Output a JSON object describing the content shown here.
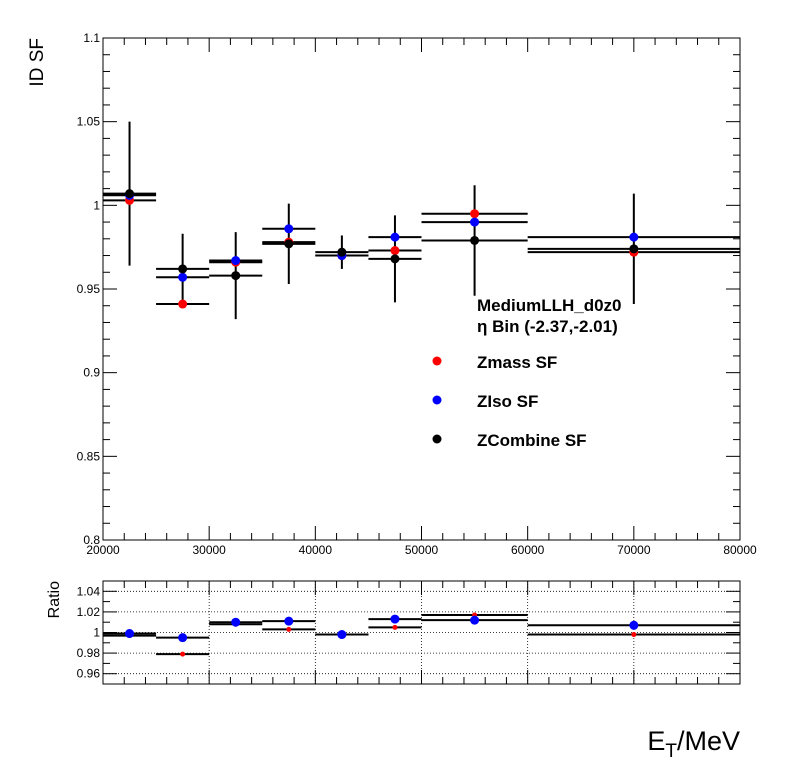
{
  "chart_data": [
    {
      "type": "scatter",
      "ylabel": "ID SF",
      "xlim": [
        20000,
        80000
      ],
      "ylim": [
        0.8,
        1.1
      ],
      "x_ticks": [
        "20000",
        "30000",
        "40000",
        "50000",
        "60000",
        "70000",
        "80000"
      ],
      "y_ticks": [
        "0.8",
        "0.85",
        "0.9",
        "0.95",
        "1",
        "1.05",
        "1.1"
      ],
      "grid": false,
      "legend_position": "center-right",
      "annotation_lines": [
        "MediumLLH_d0z0",
        "η Bin (-2.37,-2.01)"
      ],
      "series": [
        {
          "name": "Zmass SF",
          "color": "#ff0000",
          "points": [
            {
              "x": 22500,
              "xerr": 2500,
              "y": 1.003,
              "yerr": 0.0
            },
            {
              "x": 27500,
              "xerr": 2500,
              "y": 0.941,
              "yerr": 0.0
            },
            {
              "x": 32500,
              "xerr": 2500,
              "y": 0.966,
              "yerr": 0.0
            },
            {
              "x": 37500,
              "xerr": 2500,
              "y": 0.978,
              "yerr": 0.0
            },
            {
              "x": 42500,
              "xerr": 2500,
              "y": 0.97,
              "yerr": 0.0
            },
            {
              "x": 47500,
              "xerr": 2500,
              "y": 0.973,
              "yerr": 0.0
            },
            {
              "x": 55000,
              "xerr": 5000,
              "y": 0.995,
              "yerr": 0.0
            },
            {
              "x": 70000,
              "xerr": 10000,
              "y": 0.972,
              "yerr": 0.0
            }
          ]
        },
        {
          "name": "ZIso SF",
          "color": "#0000ff",
          "points": [
            {
              "x": 22500,
              "xerr": 2500,
              "y": 1.006,
              "yerr": 0.0
            },
            {
              "x": 27500,
              "xerr": 2500,
              "y": 0.957,
              "yerr": 0.0
            },
            {
              "x": 32500,
              "xerr": 2500,
              "y": 0.967,
              "yerr": 0.0
            },
            {
              "x": 37500,
              "xerr": 2500,
              "y": 0.986,
              "yerr": 0.0
            },
            {
              "x": 42500,
              "xerr": 2500,
              "y": 0.97,
              "yerr": 0.0
            },
            {
              "x": 47500,
              "xerr": 2500,
              "y": 0.981,
              "yerr": 0.0
            },
            {
              "x": 55000,
              "xerr": 5000,
              "y": 0.99,
              "yerr": 0.0
            },
            {
              "x": 70000,
              "xerr": 10000,
              "y": 0.981,
              "yerr": 0.0
            }
          ]
        },
        {
          "name": "ZCombine SF",
          "color": "#000000",
          "points": [
            {
              "x": 22500,
              "xerr": 2500,
              "y": 1.007,
              "yerr": 0.043
            },
            {
              "x": 27500,
              "xerr": 2500,
              "y": 0.962,
              "yerr": 0.021
            },
            {
              "x": 32500,
              "xerr": 2500,
              "y": 0.958,
              "yerr": 0.026
            },
            {
              "x": 37500,
              "xerr": 2500,
              "y": 0.977,
              "yerr": 0.024
            },
            {
              "x": 42500,
              "xerr": 2500,
              "y": 0.972,
              "yerr": 0.01
            },
            {
              "x": 47500,
              "xerr": 2500,
              "y": 0.968,
              "yerr": 0.026
            },
            {
              "x": 55000,
              "xerr": 5000,
              "y": 0.979,
              "yerr": 0.033
            },
            {
              "x": 70000,
              "xerr": 10000,
              "y": 0.974,
              "yerr": 0.033
            }
          ]
        }
      ]
    },
    {
      "type": "scatter",
      "xlabel_main": "E",
      "xlabel_sub": "T",
      "xlabel_rest": "/MeV",
      "ylabel": "Ratio",
      "xlim": [
        20000,
        80000
      ],
      "ylim": [
        0.95,
        1.05
      ],
      "x_ticks": [
        "20000",
        "30000",
        "40000",
        "50000",
        "60000",
        "70000",
        "80000"
      ],
      "y_ticks": [
        "0.96",
        "0.98",
        "1",
        "1.02",
        "1.04"
      ],
      "grid": true,
      "series": [
        {
          "name": "Zmass ratio",
          "color": "#ff0000",
          "points": [
            {
              "x": 22500,
              "xerr": 2500,
              "y": 0.997
            },
            {
              "x": 27500,
              "xerr": 2500,
              "y": 0.979
            },
            {
              "x": 32500,
              "xerr": 2500,
              "y": 1.008
            },
            {
              "x": 37500,
              "xerr": 2500,
              "y": 1.003
            },
            {
              "x": 42500,
              "xerr": 2500,
              "y": 0.998
            },
            {
              "x": 47500,
              "xerr": 2500,
              "y": 1.005
            },
            {
              "x": 55000,
              "xerr": 5000,
              "y": 1.017
            },
            {
              "x": 70000,
              "xerr": 10000,
              "y": 0.998
            }
          ]
        },
        {
          "name": "ZIso ratio",
          "color": "#0000ff",
          "points": [
            {
              "x": 22500,
              "xerr": 2500,
              "y": 0.999
            },
            {
              "x": 27500,
              "xerr": 2500,
              "y": 0.995
            },
            {
              "x": 32500,
              "xerr": 2500,
              "y": 1.01
            },
            {
              "x": 37500,
              "xerr": 2500,
              "y": 1.011
            },
            {
              "x": 42500,
              "xerr": 2500,
              "y": 0.998
            },
            {
              "x": 47500,
              "xerr": 2500,
              "y": 1.013
            },
            {
              "x": 55000,
              "xerr": 5000,
              "y": 1.012
            },
            {
              "x": 70000,
              "xerr": 10000,
              "y": 1.007
            }
          ]
        }
      ]
    }
  ]
}
